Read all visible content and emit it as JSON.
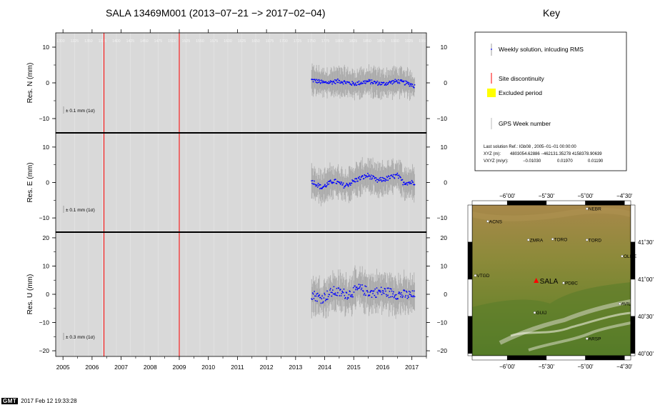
{
  "title": "SALA 13469M001 (2013−07−21 −> 2017−02−04)",
  "key_title": "Key",
  "chart_data": {
    "type": "scatter",
    "x_unit": "year",
    "xlim": [
      2004.75,
      2017.5
    ],
    "x_ticks": [
      "2005",
      "2006",
      "2007",
      "2008",
      "2009",
      "2010",
      "2011",
      "2012",
      "2013",
      "2014",
      "2015",
      "2016",
      "2017"
    ],
    "gps_weeks": [
      "1300",
      "1325",
      "1350",
      "1375",
      "1400",
      "1425",
      "1450",
      "1475",
      "1500",
      "1525",
      "1550",
      "1575",
      "1600",
      "1625",
      "1650",
      "1675",
      "1700",
      "1725",
      "1750",
      "1775",
      "1800",
      "1825",
      "1850",
      "1875",
      "1900",
      "1925",
      "1950"
    ],
    "discontinuities": [
      2006.41,
      2009.0
    ],
    "data_start": 2013.55,
    "data_end": 2017.1,
    "panels": [
      {
        "ylabel": "Res. N (mm)",
        "ylim": [
          -14,
          14
        ],
        "yticks": [
          "10",
          "0",
          "−10"
        ],
        "ytick_values": [
          10,
          0,
          -10
        ],
        "rms_label": "± 0.1 mm (1σ)",
        "error_mm": 3,
        "noise_mm": 0.6,
        "trend": [
          [
            2013.55,
            0.8
          ],
          [
            2014.0,
            0.0
          ],
          [
            2014.5,
            0.5
          ],
          [
            2015.0,
            -0.3
          ],
          [
            2015.5,
            0.4
          ],
          [
            2016.0,
            -0.3
          ],
          [
            2016.5,
            0.5
          ],
          [
            2017.0,
            -0.5
          ],
          [
            2017.1,
            -1.0
          ]
        ]
      },
      {
        "ylabel": "Res. E (mm)",
        "ylim": [
          -14,
          14
        ],
        "yticks": [
          "10",
          "0",
          "−10"
        ],
        "ytick_values": [
          10,
          0,
          -10
        ],
        "rms_label": "± 0.1 mm (1σ)",
        "error_mm": 3.5,
        "noise_mm": 0.7,
        "trend": [
          [
            2013.55,
            0.5
          ],
          [
            2013.9,
            -1.5
          ],
          [
            2014.3,
            0.5
          ],
          [
            2014.7,
            -1.0
          ],
          [
            2015.1,
            0.8
          ],
          [
            2015.5,
            2.0
          ],
          [
            2015.8,
            0.5
          ],
          [
            2016.1,
            1.0
          ],
          [
            2016.5,
            2.0
          ],
          [
            2016.7,
            0.0
          ],
          [
            2017.1,
            0.0
          ]
        ]
      },
      {
        "ylabel": "Res. U (mm)",
        "ylim": [
          -22,
          22
        ],
        "yticks": [
          "20",
          "10",
          "0",
          "−10",
          "−20"
        ],
        "ytick_values": [
          20,
          10,
          0,
          -10,
          -20
        ],
        "rms_label": "± 0.3 mm (1σ)",
        "error_mm": 5,
        "noise_mm": 1.8,
        "trend": [
          [
            2013.55,
            0.0
          ],
          [
            2013.9,
            -1.5
          ],
          [
            2014.3,
            1.0
          ],
          [
            2014.8,
            0.0
          ],
          [
            2015.2,
            2.0
          ],
          [
            2015.6,
            0.5
          ],
          [
            2016.0,
            1.0
          ],
          [
            2016.5,
            0.0
          ],
          [
            2017.1,
            -0.5
          ]
        ]
      }
    ]
  },
  "key": {
    "weekly_label": "Weekly solution, inlcuding RMS",
    "disc_label": "Site discontinuity",
    "excluded_label": "Excluded period",
    "gps_week_label": "GPS Week number",
    "solution_line": "Last solution Ref.: IGb08 , 2005−01−01 00:00:00",
    "xyz_label": "XYZ (m):",
    "xyz_values": "4803054.62886  −462131.35278  4158378.90639",
    "vxyz_label": "VXYZ (m/yr):",
    "vxyz_values": [
      "−0.01030",
      "0.01970",
      "0.01190"
    ],
    "colors": {
      "discontinuity": "#ff0000",
      "excluded": "#ffff00",
      "points": "#0000ff",
      "error": "#aaaaaa",
      "panel_bg": "#d9d9d9"
    }
  },
  "map": {
    "lon_ticks": [
      "−6˚00'",
      "−5˚30'",
      "−5˚00'",
      "−4˚30'"
    ],
    "lon_values": [
      -6.0,
      -5.5,
      -5.0,
      -4.5
    ],
    "lat_ticks": [
      "41˚30'",
      "41˚00'",
      "40˚30'",
      "40˚00'"
    ],
    "lat_values": [
      41.5,
      41.0,
      40.5,
      40.0
    ],
    "lon_range": [
      -6.45,
      -4.42
    ],
    "lat_range": [
      39.97,
      42.0
    ],
    "stations": [
      {
        "name": "NEBR",
        "lon": -4.98,
        "lat": 41.95
      },
      {
        "name": "ACNS",
        "lon": -6.25,
        "lat": 41.78
      },
      {
        "name": "ZMRA",
        "lon": -5.73,
        "lat": 41.53
      },
      {
        "name": "TORO",
        "lon": -5.42,
        "lat": 41.54
      },
      {
        "name": "TORD",
        "lon": -4.98,
        "lat": 41.53
      },
      {
        "name": "OLME",
        "lon": -4.53,
        "lat": 41.31
      },
      {
        "name": "VTGD",
        "lon": -6.41,
        "lat": 41.05
      },
      {
        "name": "PDBC",
        "lon": -5.28,
        "lat": 40.95
      },
      {
        "name": "AVIL",
        "lon": -4.56,
        "lat": 40.67
      },
      {
        "name": "GUIJ",
        "lon": -5.65,
        "lat": 40.55
      },
      {
        "name": "ARSP",
        "lon": -4.98,
        "lat": 40.2
      }
    ],
    "highlight": {
      "name": "SALA",
      "lon": -5.63,
      "lat": 40.98
    }
  },
  "stamp": {
    "logo": "GMT",
    "datetime": "2017 Feb 12 19:33:28"
  }
}
